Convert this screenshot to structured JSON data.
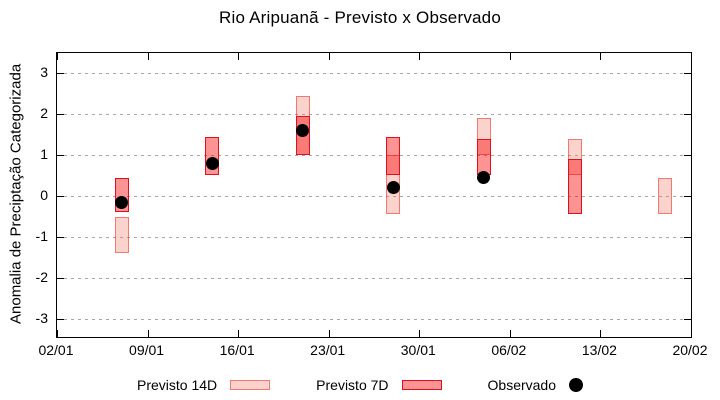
{
  "title": "Rio Aripuanã - Previsto x Observado",
  "chart_data": {
    "type": "bar",
    "subtype": "range-bars-with-scatter",
    "title": "Rio Aripuanã - Previsto x Observado",
    "xlabel": "",
    "ylabel": "Anomalia de Preciptação Categorizada",
    "grid": true,
    "ylim": [
      -3.45,
      3.5
    ],
    "y_ticks": [
      3,
      2,
      1,
      0,
      -1,
      -2,
      -3
    ],
    "y_tick_labels": [
      "3",
      "2",
      "1",
      "0",
      "-1",
      "-2",
      "-3"
    ],
    "x_axis": {
      "start_label": "02/01",
      "end_label": "20/02",
      "tick_labels": [
        "02/01",
        "09/01",
        "16/01",
        "23/01",
        "30/01",
        "06/02",
        "13/02",
        "20/02"
      ],
      "tick_days": [
        0,
        7,
        14,
        21,
        28,
        35,
        42,
        49
      ],
      "total_days": 49
    },
    "series": [
      {
        "name": "Previsto 14D",
        "type": "range-bar",
        "ranges": [
          {
            "date": "07/01",
            "day": 5,
            "lo": -1.4,
            "hi": -0.5
          },
          {
            "date": "21/01",
            "day": 19,
            "lo": 1.0,
            "hi": 2.45
          },
          {
            "date": "28/01",
            "day": 26,
            "lo": -0.45,
            "hi": 1.0
          },
          {
            "date": "04/02",
            "day": 33,
            "lo": 1.0,
            "hi": 1.9
          },
          {
            "date": "11/02",
            "day": 40,
            "lo": 0.5,
            "hi": 1.4
          },
          {
            "date": "18/02",
            "day": 47,
            "lo": -0.45,
            "hi": 0.45
          }
        ]
      },
      {
        "name": "Previsto 7D",
        "type": "range-bar",
        "ranges": [
          {
            "date": "07/01",
            "day": 5,
            "lo": -0.4,
            "hi": 0.45
          },
          {
            "date": "14/01",
            "day": 12,
            "lo": 0.5,
            "hi": 1.45
          },
          {
            "date": "21/01",
            "day": 19,
            "lo": 1.0,
            "hi": 1.95
          },
          {
            "date": "28/01",
            "day": 26,
            "lo": 0.5,
            "hi": 1.45
          },
          {
            "date": "04/02",
            "day": 33,
            "lo": 0.5,
            "hi": 1.4
          },
          {
            "date": "11/02",
            "day": 40,
            "lo": -0.45,
            "hi": 0.9
          }
        ]
      },
      {
        "name": "Observado",
        "type": "scatter",
        "points": [
          {
            "date": "07/01",
            "day": 5,
            "value": -0.15
          },
          {
            "date": "14/01",
            "day": 12,
            "value": 0.8
          },
          {
            "date": "21/01",
            "day": 19,
            "value": 1.6
          },
          {
            "date": "28/01",
            "day": 26,
            "value": 0.2
          },
          {
            "date": "04/02",
            "day": 33,
            "value": 0.45
          }
        ]
      }
    ],
    "legend": {
      "position": "bottom-center",
      "items": [
        {
          "label": "Previsto 14D",
          "swatch": "box-light"
        },
        {
          "label": "Previsto 7D",
          "swatch": "box-dark"
        },
        {
          "label": "Observado",
          "swatch": "dot"
        }
      ]
    },
    "colors": {
      "p14_fill": "rgba(243,122,103,0.33)",
      "p14_border": "rgba(237,45,40,0.55)",
      "p7_fill": "rgba(248,0,0,0.42)",
      "p7_border": "#e00f1e",
      "observed": "#000000",
      "grid": "#a6a6a6",
      "axis": "#000000"
    }
  }
}
